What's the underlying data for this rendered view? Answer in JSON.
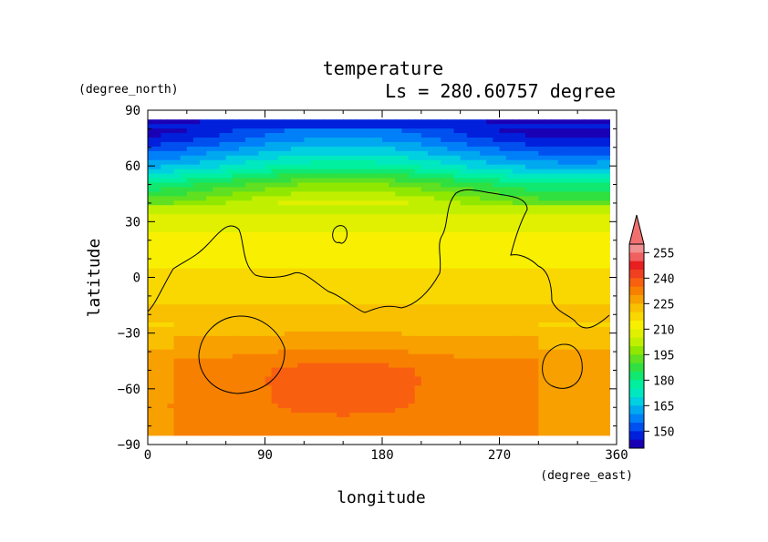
{
  "chart_data": {
    "type": "heatmap",
    "title": "temperature",
    "subtitle": "Ls = 280.60757 degree",
    "xlabel": "longitude",
    "ylabel": "latitude",
    "xunit": "(degree_east)",
    "yunit": "(degree_north)",
    "xlim": [
      0,
      360
    ],
    "ylim": [
      -90,
      90
    ],
    "xticks": [
      "0",
      "90",
      "180",
      "270",
      "360"
    ],
    "yticks": [
      "90",
      "60",
      "30",
      "0",
      "−30",
      "−60",
      "−90"
    ],
    "colorbar": {
      "levels": [
        140,
        145,
        150,
        155,
        160,
        165,
        170,
        175,
        180,
        185,
        190,
        195,
        200,
        205,
        210,
        215,
        220,
        225,
        230,
        235,
        240,
        245,
        250,
        255,
        260
      ],
      "labels": [
        "150",
        "165",
        "180",
        "195",
        "210",
        "225",
        "240",
        "255"
      ],
      "colors": [
        "#1a00b4",
        "#0020dc",
        "#0050f0",
        "#0080f8",
        "#00a8f0",
        "#00d0e0",
        "#00e8c0",
        "#00f0a0",
        "#10e870",
        "#30e040",
        "#60e020",
        "#90e800",
        "#c0f000",
        "#e0f000",
        "#f8f000",
        "#f8d800",
        "#f8c000",
        "#f8a000",
        "#f88000",
        "#f86010",
        "#f04020",
        "#e82020",
        "#f06060",
        "#f09090"
      ],
      "overflow_color": "#f07070"
    },
    "z_samples": {
      "note_lat": [
        85,
        75,
        60,
        50,
        40,
        30,
        20,
        10,
        0,
        -10,
        -20,
        -30,
        -40,
        -50,
        -60,
        -70,
        -80,
        -85
      ],
      "zonal": [
        145,
        152,
        170,
        188,
        200,
        208,
        212,
        214,
        216,
        219,
        221,
        224,
        228,
        232,
        232,
        233,
        232,
        231
      ]
    }
  }
}
